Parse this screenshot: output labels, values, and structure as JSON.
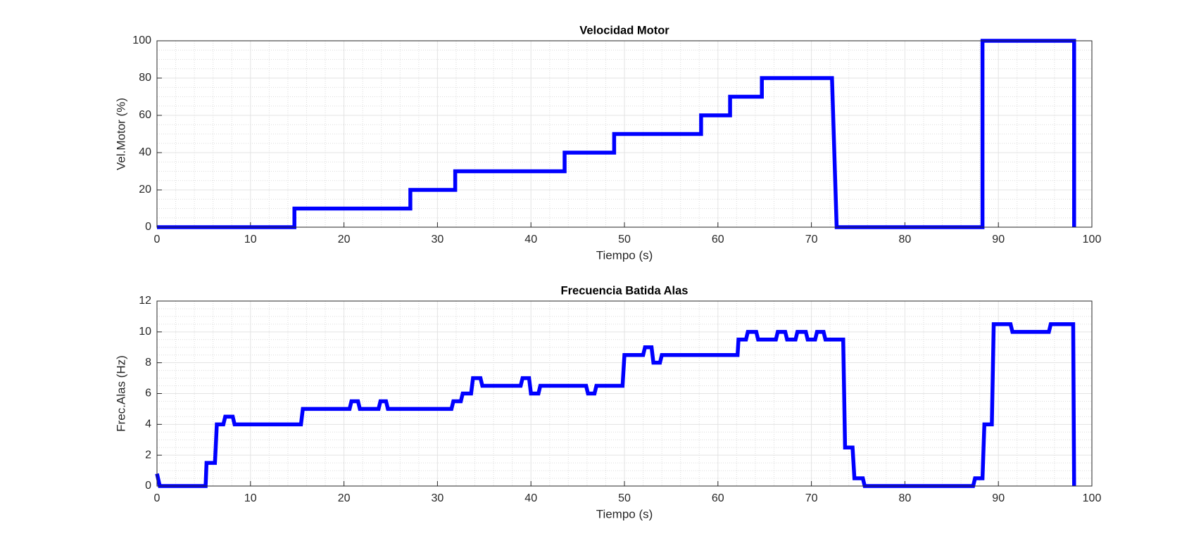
{
  "chart_data": [
    {
      "type": "line",
      "title": "Velocidad Motor",
      "xlabel": "Tiempo (s)",
      "ylabel": "Vel.Motor (%)",
      "x": [
        0,
        14.7,
        14.7,
        27.1,
        27.1,
        31.9,
        31.9,
        43.6,
        43.6,
        48.9,
        48.9,
        58.2,
        58.2,
        61.3,
        61.3,
        64.7,
        64.7,
        72.2,
        72.7,
        88.3,
        88.3,
        98.1,
        98.1
      ],
      "values": [
        0,
        0,
        10,
        10,
        20,
        20,
        30,
        30,
        40,
        40,
        50,
        50,
        60,
        60,
        70,
        70,
        80,
        80,
        0,
        0,
        100,
        100,
        0
      ],
      "color": "#0000ff",
      "xlim": [
        0,
        100
      ],
      "xticks": [
        0,
        10,
        20,
        30,
        40,
        50,
        60,
        70,
        80,
        90,
        100
      ],
      "ylim": [
        0,
        100
      ],
      "yticks": [
        0,
        20,
        40,
        60,
        80,
        100
      ],
      "grid": true,
      "minor_grid": true,
      "x_minor_divisions": 5,
      "y_minor_divisions": 4
    },
    {
      "type": "line",
      "title": "Frecuencia Batida Alas",
      "xlabel": "Tiempo (s)",
      "ylabel": "Frec.Alas (Hz)",
      "x": [
        0,
        0.3,
        5.2,
        5.3,
        6.2,
        6.4,
        7.1,
        7.3,
        8.1,
        8.3,
        15.4,
        15.6,
        20.6,
        20.8,
        21.5,
        21.7,
        23.7,
        23.9,
        24.5,
        24.7,
        31.5,
        31.7,
        32.5,
        32.7,
        33.6,
        33.8,
        34.6,
        34.8,
        38.9,
        39.1,
        39.8,
        40.0,
        40.8,
        41.0,
        45.9,
        46.1,
        46.8,
        47.0,
        49.8,
        50.0,
        52.0,
        52.2,
        52.9,
        53.1,
        53.8,
        54.0,
        62.1,
        62.2,
        63.0,
        63.2,
        64.1,
        64.3,
        66.2,
        66.4,
        67.2,
        67.4,
        68.3,
        68.5,
        69.4,
        69.6,
        70.4,
        70.6,
        71.3,
        71.5,
        73.4,
        73.6,
        74.4,
        74.6,
        75.5,
        75.7,
        87.3,
        87.5,
        88.3,
        88.5,
        89.3,
        89.5,
        91.3,
        91.5,
        95.4,
        95.6,
        98.0,
        98.1
      ],
      "values": [
        0.8,
        0,
        0,
        1.5,
        1.5,
        4,
        4,
        4.5,
        4.5,
        4,
        4,
        5,
        5,
        5.5,
        5.5,
        5,
        5,
        5.5,
        5.5,
        5,
        5,
        5.5,
        5.5,
        6,
        6,
        7,
        7,
        6.5,
        6.5,
        7,
        7,
        6,
        6,
        6.5,
        6.5,
        6,
        6,
        6.5,
        6.5,
        8.5,
        8.5,
        9,
        9,
        8,
        8,
        8.5,
        8.5,
        9.5,
        9.5,
        10,
        10,
        9.5,
        9.5,
        10,
        10,
        9.5,
        9.5,
        10,
        10,
        9.5,
        9.5,
        10,
        10,
        9.5,
        9.5,
        2.5,
        2.5,
        0.5,
        0.5,
        0,
        0,
        0.5,
        0.5,
        4,
        4,
        10.5,
        10.5,
        10,
        10,
        10.5,
        10.5,
        0
      ],
      "color": "#0000ff",
      "xlim": [
        0,
        100
      ],
      "xticks": [
        0,
        10,
        20,
        30,
        40,
        50,
        60,
        70,
        80,
        90,
        100
      ],
      "ylim": [
        0,
        12
      ],
      "yticks": [
        0,
        2,
        4,
        6,
        8,
        10,
        12
      ],
      "grid": true,
      "minor_grid": true,
      "x_minor_divisions": 5,
      "y_minor_divisions": 4
    }
  ]
}
